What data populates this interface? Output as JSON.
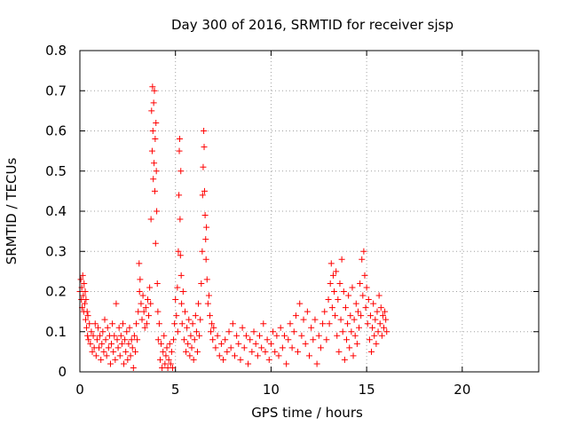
{
  "chart_data": {
    "type": "scatter",
    "title": "Day 300 of 2016, SRMTID for receiver sjsp",
    "xlabel": "GPS time / hours",
    "ylabel": "SRMTID / TECUs",
    "xlim": [
      0,
      24
    ],
    "ylim": [
      0,
      0.8
    ],
    "xticks": [
      0,
      5,
      10,
      15,
      20
    ],
    "yticks": [
      0,
      0.1,
      0.2,
      0.3,
      0.4,
      0.5,
      0.6,
      0.7,
      0.8
    ],
    "grid": true,
    "marker": "+",
    "series": [
      {
        "name": "SRMTID",
        "color": "#ff0000",
        "points": [
          [
            0.0,
            0.2
          ],
          [
            0.05,
            0.23
          ],
          [
            0.08,
            0.18
          ],
          [
            0.1,
            0.21
          ],
          [
            0.12,
            0.16
          ],
          [
            0.15,
            0.24
          ],
          [
            0.18,
            0.19
          ],
          [
            0.2,
            0.15
          ],
          [
            0.22,
            0.22
          ],
          [
            0.25,
            0.17
          ],
          [
            0.28,
            0.2
          ],
          [
            0.3,
            0.13
          ],
          [
            0.32,
            0.18
          ],
          [
            0.35,
            0.11
          ],
          [
            0.38,
            0.15
          ],
          [
            0.4,
            0.09
          ],
          [
            0.42,
            0.14
          ],
          [
            0.45,
            0.08
          ],
          [
            0.5,
            0.12
          ],
          [
            0.55,
            0.07
          ],
          [
            0.6,
            0.1
          ],
          [
            0.65,
            0.05
          ],
          [
            0.7,
            0.09
          ],
          [
            0.75,
            0.06
          ],
          [
            0.8,
            0.12
          ],
          [
            0.85,
            0.04
          ],
          [
            0.9,
            0.08
          ],
          [
            0.95,
            0.11
          ],
          [
            1.0,
            0.06
          ],
          [
            1.05,
            0.09
          ],
          [
            1.1,
            0.03
          ],
          [
            1.15,
            0.07
          ],
          [
            1.2,
            0.1
          ],
          [
            1.25,
            0.05
          ],
          [
            1.3,
            0.13
          ],
          [
            1.35,
            0.08
          ],
          [
            1.4,
            0.04
          ],
          [
            1.45,
            0.11
          ],
          [
            1.5,
            0.06
          ],
          [
            1.55,
            0.09
          ],
          [
            1.6,
            0.02
          ],
          [
            1.65,
            0.07
          ],
          [
            1.7,
            0.12
          ],
          [
            1.75,
            0.05
          ],
          [
            1.8,
            0.09
          ],
          [
            1.85,
            0.03
          ],
          [
            1.9,
            0.17
          ],
          [
            1.95,
            0.08
          ],
          [
            2.0,
            0.06
          ],
          [
            2.05,
            0.11
          ],
          [
            2.1,
            0.04
          ],
          [
            2.15,
            0.09
          ],
          [
            2.2,
            0.07
          ],
          [
            2.25,
            0.12
          ],
          [
            2.3,
            0.02
          ],
          [
            2.35,
            0.08
          ],
          [
            2.4,
            0.05
          ],
          [
            2.45,
            0.1
          ],
          [
            2.5,
            0.03
          ],
          [
            2.55,
            0.07
          ],
          [
            2.6,
            0.11
          ],
          [
            2.65,
            0.04
          ],
          [
            2.7,
            0.08
          ],
          [
            2.75,
            0.06
          ],
          [
            2.8,
            0.01
          ],
          [
            2.85,
            0.09
          ],
          [
            2.9,
            0.05
          ],
          [
            2.95,
            0.12
          ],
          [
            3.0,
            0.08
          ],
          [
            3.05,
            0.15
          ],
          [
            3.1,
            0.27
          ],
          [
            3.12,
            0.2
          ],
          [
            3.15,
            0.23
          ],
          [
            3.2,
            0.17
          ],
          [
            3.25,
            0.13
          ],
          [
            3.3,
            0.19
          ],
          [
            3.35,
            0.15
          ],
          [
            3.4,
            0.11
          ],
          [
            3.45,
            0.16
          ],
          [
            3.5,
            0.12
          ],
          [
            3.55,
            0.18
          ],
          [
            3.6,
            0.14
          ],
          [
            3.65,
            0.21
          ],
          [
            3.7,
            0.17
          ],
          [
            3.72,
            0.38
          ],
          [
            3.75,
            0.65
          ],
          [
            3.78,
            0.55
          ],
          [
            3.8,
            0.71
          ],
          [
            3.82,
            0.6
          ],
          [
            3.84,
            0.48
          ],
          [
            3.86,
            0.67
          ],
          [
            3.88,
            0.52
          ],
          [
            3.9,
            0.7
          ],
          [
            3.92,
            0.45
          ],
          [
            3.94,
            0.58
          ],
          [
            3.96,
            0.32
          ],
          [
            3.98,
            0.62
          ],
          [
            4.0,
            0.5
          ],
          [
            4.02,
            0.4
          ],
          [
            4.05,
            0.22
          ],
          [
            4.08,
            0.15
          ],
          [
            4.1,
            0.08
          ],
          [
            4.15,
            0.12
          ],
          [
            4.2,
            0.03
          ],
          [
            4.25,
            0.07
          ],
          [
            4.3,
            0.01
          ],
          [
            4.35,
            0.05
          ],
          [
            4.4,
            0.09
          ],
          [
            4.45,
            0.02
          ],
          [
            4.5,
            0.04
          ],
          [
            4.55,
            0.06
          ],
          [
            4.6,
            0.01
          ],
          [
            4.65,
            0.03
          ],
          [
            4.7,
            0.07
          ],
          [
            4.75,
            0.02
          ],
          [
            4.8,
            0.05
          ],
          [
            4.85,
            0.01
          ],
          [
            4.9,
            0.08
          ],
          [
            4.95,
            0.12
          ],
          [
            5.0,
            0.18
          ],
          [
            5.05,
            0.14
          ],
          [
            5.1,
            0.21
          ],
          [
            5.12,
            0.1
          ],
          [
            5.15,
            0.3
          ],
          [
            5.18,
            0.44
          ],
          [
            5.2,
            0.55
          ],
          [
            5.22,
            0.58
          ],
          [
            5.24,
            0.38
          ],
          [
            5.26,
            0.29
          ],
          [
            5.28,
            0.5
          ],
          [
            5.3,
            0.24
          ],
          [
            5.32,
            0.17
          ],
          [
            5.35,
            0.12
          ],
          [
            5.4,
            0.2
          ],
          [
            5.45,
            0.08
          ],
          [
            5.5,
            0.15
          ],
          [
            5.55,
            0.05
          ],
          [
            5.6,
            0.11
          ],
          [
            5.65,
            0.07
          ],
          [
            5.7,
            0.13
          ],
          [
            5.75,
            0.04
          ],
          [
            5.8,
            0.09
          ],
          [
            5.85,
            0.06
          ],
          [
            5.9,
            0.12
          ],
          [
            5.95,
            0.03
          ],
          [
            6.0,
            0.08
          ],
          [
            6.05,
            0.14
          ],
          [
            6.1,
            0.1
          ],
          [
            6.15,
            0.05
          ],
          [
            6.2,
            0.17
          ],
          [
            6.25,
            0.09
          ],
          [
            6.3,
            0.13
          ],
          [
            6.35,
            0.22
          ],
          [
            6.4,
            0.3
          ],
          [
            6.42,
            0.44
          ],
          [
            6.45,
            0.51
          ],
          [
            6.48,
            0.6
          ],
          [
            6.5,
            0.56
          ],
          [
            6.52,
            0.45
          ],
          [
            6.55,
            0.39
          ],
          [
            6.58,
            0.33
          ],
          [
            6.6,
            0.28
          ],
          [
            6.62,
            0.36
          ],
          [
            6.65,
            0.23
          ],
          [
            6.7,
            0.17
          ],
          [
            6.75,
            0.19
          ],
          [
            6.8,
            0.14
          ],
          [
            6.85,
            0.1
          ],
          [
            6.9,
            0.12
          ],
          [
            6.95,
            0.08
          ],
          [
            7.0,
            0.11
          ],
          [
            7.1,
            0.06
          ],
          [
            7.2,
            0.09
          ],
          [
            7.3,
            0.04
          ],
          [
            7.4,
            0.07
          ],
          [
            7.5,
            0.03
          ],
          [
            7.6,
            0.08
          ],
          [
            7.7,
            0.05
          ],
          [
            7.8,
            0.1
          ],
          [
            7.9,
            0.06
          ],
          [
            8.0,
            0.12
          ],
          [
            8.1,
            0.04
          ],
          [
            8.2,
            0.09
          ],
          [
            8.3,
            0.07
          ],
          [
            8.4,
            0.03
          ],
          [
            8.5,
            0.11
          ],
          [
            8.6,
            0.06
          ],
          [
            8.7,
            0.09
          ],
          [
            8.8,
            0.02
          ],
          [
            8.9,
            0.08
          ],
          [
            9.0,
            0.05
          ],
          [
            9.1,
            0.1
          ],
          [
            9.2,
            0.07
          ],
          [
            9.3,
            0.04
          ],
          [
            9.4,
            0.09
          ],
          [
            9.5,
            0.06
          ],
          [
            9.6,
            0.12
          ],
          [
            9.7,
            0.05
          ],
          [
            9.8,
            0.08
          ],
          [
            9.9,
            0.03
          ],
          [
            10.0,
            0.07
          ],
          [
            10.1,
            0.1
          ],
          [
            10.2,
            0.05
          ],
          [
            10.3,
            0.09
          ],
          [
            10.4,
            0.04
          ],
          [
            10.5,
            0.11
          ],
          [
            10.6,
            0.06
          ],
          [
            10.7,
            0.09
          ],
          [
            10.8,
            0.02
          ],
          [
            10.9,
            0.08
          ],
          [
            11.0,
            0.12
          ],
          [
            11.1,
            0.06
          ],
          [
            11.2,
            0.1
          ],
          [
            11.3,
            0.14
          ],
          [
            11.4,
            0.05
          ],
          [
            11.5,
            0.17
          ],
          [
            11.6,
            0.09
          ],
          [
            11.7,
            0.13
          ],
          [
            11.8,
            0.07
          ],
          [
            11.9,
            0.15
          ],
          [
            12.0,
            0.04
          ],
          [
            12.1,
            0.11
          ],
          [
            12.2,
            0.08
          ],
          [
            12.3,
            0.13
          ],
          [
            12.4,
            0.02
          ],
          [
            12.5,
            0.09
          ],
          [
            12.6,
            0.06
          ],
          [
            12.7,
            0.12
          ],
          [
            12.8,
            0.15
          ],
          [
            12.9,
            0.08
          ],
          [
            13.0,
            0.18
          ],
          [
            13.05,
            0.12
          ],
          [
            13.1,
            0.22
          ],
          [
            13.15,
            0.27
          ],
          [
            13.2,
            0.16
          ],
          [
            13.25,
            0.24
          ],
          [
            13.3,
            0.2
          ],
          [
            13.35,
            0.14
          ],
          [
            13.4,
            0.25
          ],
          [
            13.45,
            0.09
          ],
          [
            13.5,
            0.18
          ],
          [
            13.55,
            0.05
          ],
          [
            13.6,
            0.22
          ],
          [
            13.65,
            0.13
          ],
          [
            13.7,
            0.28
          ],
          [
            13.75,
            0.1
          ],
          [
            13.8,
            0.2
          ],
          [
            13.85,
            0.03
          ],
          [
            13.9,
            0.16
          ],
          [
            13.95,
            0.08
          ],
          [
            14.0,
            0.12
          ],
          [
            14.05,
            0.19
          ],
          [
            14.1,
            0.06
          ],
          [
            14.15,
            0.14
          ],
          [
            14.2,
            0.1
          ],
          [
            14.25,
            0.21
          ],
          [
            14.3,
            0.04
          ],
          [
            14.35,
            0.13
          ],
          [
            14.4,
            0.09
          ],
          [
            14.45,
            0.17
          ],
          [
            14.5,
            0.07
          ],
          [
            14.55,
            0.15
          ],
          [
            14.6,
            0.11
          ],
          [
            14.65,
            0.22
          ],
          [
            14.7,
            0.14
          ],
          [
            14.75,
            0.28
          ],
          [
            14.8,
            0.19
          ],
          [
            14.85,
            0.3
          ],
          [
            14.9,
            0.24
          ],
          [
            14.95,
            0.16
          ],
          [
            15.0,
            0.21
          ],
          [
            15.05,
            0.12
          ],
          [
            15.1,
            0.18
          ],
          [
            15.15,
            0.08
          ],
          [
            15.2,
            0.14
          ],
          [
            15.25,
            0.05
          ],
          [
            15.3,
            0.11
          ],
          [
            15.35,
            0.17
          ],
          [
            15.4,
            0.09
          ],
          [
            15.45,
            0.13
          ],
          [
            15.5,
            0.07
          ],
          [
            15.55,
            0.15
          ],
          [
            15.6,
            0.1
          ],
          [
            15.65,
            0.19
          ],
          [
            15.7,
            0.12
          ],
          [
            15.75,
            0.16
          ],
          [
            15.8,
            0.09
          ],
          [
            15.85,
            0.14
          ],
          [
            15.9,
            0.11
          ],
          [
            15.95,
            0.15
          ],
          [
            16.0,
            0.13
          ],
          [
            16.05,
            0.1
          ]
        ]
      }
    ]
  }
}
